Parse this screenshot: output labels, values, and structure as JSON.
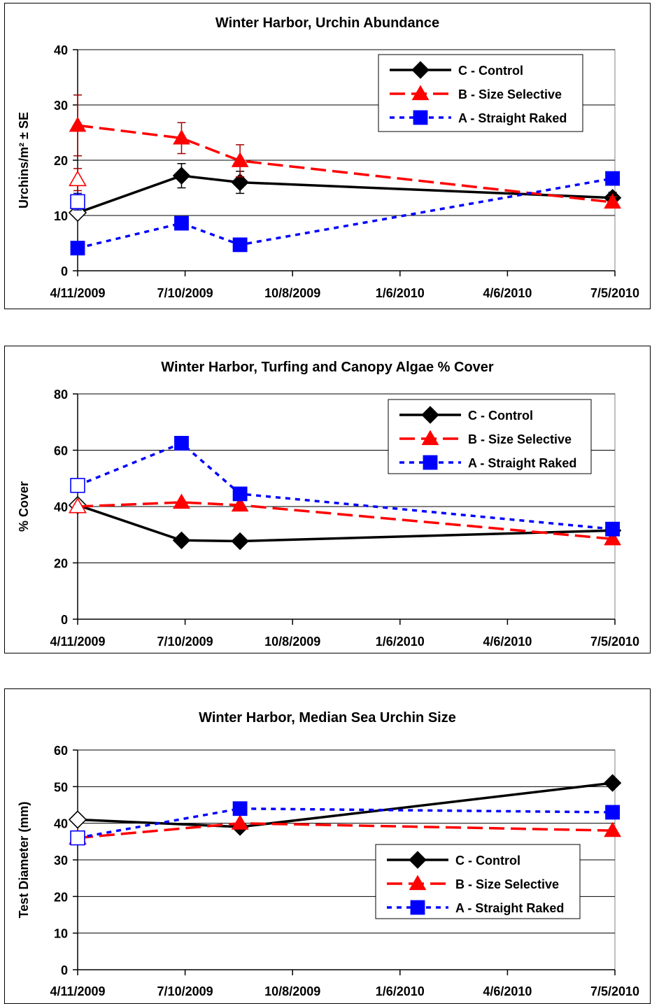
{
  "chart_data": [
    {
      "type": "line",
      "title": "Winter Harbor, Urchin Abundance",
      "ylabel": "Urchins/m² ± SE",
      "xlabel": "",
      "ylim": [
        0,
        40
      ],
      "yticks": [
        0,
        10,
        20,
        30,
        40
      ],
      "xticks": [
        "4/11/2009",
        "7/10/2009",
        "10/8/2009",
        "1/6/2010",
        "4/6/2010",
        "7/5/2010"
      ],
      "grid": true,
      "legend": "top-right",
      "series": [
        {
          "name": "C - Control",
          "color": "#000000",
          "dash": "solid",
          "marker": "diamond",
          "x": [
            "2009-04-11",
            "2009-07-07",
            "2009-08-25",
            "2010-07-03"
          ],
          "y": [
            10.5,
            17.2,
            16.0,
            13.2
          ],
          "err": [
            0.8,
            2.2,
            2.0,
            1.0
          ],
          "first_marker_hollow": true
        },
        {
          "name": "B - Size Selective",
          "color": "#ff0000",
          "dash": "long-dash",
          "marker": "triangle",
          "x": [
            "2009-04-11",
            "2009-07-07",
            "2009-08-25",
            "2010-07-03"
          ],
          "y": [
            26.3,
            24.0,
            19.9,
            12.4
          ],
          "err": [
            5.5,
            2.8,
            2.9,
            1.0
          ],
          "extra_hollow_point": {
            "x": "2009-04-11",
            "y": 16.5,
            "err": 2.0
          }
        },
        {
          "name": "A - Straight Raked",
          "color": "#0000ff",
          "dash": "dotted",
          "marker": "square",
          "x": [
            "2009-04-11",
            "2009-07-07",
            "2009-08-25",
            "2010-07-03"
          ],
          "y": [
            4.1,
            8.6,
            4.7,
            16.7
          ],
          "err": [
            0.6,
            1.0,
            0.6,
            1.0
          ],
          "extra_hollow_point": {
            "x": "2009-04-11",
            "y": 12.5,
            "err": 1.5
          }
        }
      ]
    },
    {
      "type": "line",
      "title": "Winter Harbor, Turfing and Canopy Algae % Cover",
      "ylabel": "% Cover",
      "xlabel": "",
      "ylim": [
        0,
        80
      ],
      "yticks": [
        0,
        20,
        40,
        60,
        80
      ],
      "xticks": [
        "4/11/2009",
        "7/10/2009",
        "10/8/2009",
        "1/6/2010",
        "4/6/2010",
        "7/5/2010"
      ],
      "grid": true,
      "legend": "top-right",
      "series": [
        {
          "name": "C - Control",
          "color": "#000000",
          "dash": "solid",
          "marker": "diamond",
          "x": [
            "2009-04-11",
            "2009-07-07",
            "2009-08-25",
            "2010-07-03"
          ],
          "y": [
            40.5,
            28.0,
            27.7,
            31.5
          ],
          "first_marker_hollow": true
        },
        {
          "name": "B - Size Selective",
          "color": "#ff0000",
          "dash": "long-dash",
          "marker": "triangle",
          "x": [
            "2009-04-11",
            "2009-07-07",
            "2009-08-25",
            "2010-07-03"
          ],
          "y": [
            40.0,
            41.5,
            40.5,
            28.5
          ],
          "first_marker_hollow": true
        },
        {
          "name": "A - Straight Raked",
          "color": "#0000ff",
          "dash": "dotted",
          "marker": "square",
          "x": [
            "2009-04-11",
            "2009-07-07",
            "2009-08-25",
            "2010-07-03"
          ],
          "y": [
            47.5,
            62.5,
            44.5,
            32.0
          ],
          "first_marker_hollow": true
        }
      ]
    },
    {
      "type": "line",
      "title": "Winter Harbor, Median Sea Urchin Size",
      "ylabel": "Test Diameter (mm)",
      "xlabel": "",
      "ylim": [
        0,
        60
      ],
      "yticks": [
        0,
        10,
        20,
        30,
        40,
        50,
        60
      ],
      "xticks": [
        "4/11/2009",
        "7/10/2009",
        "10/8/2009",
        "1/6/2010",
        "4/6/2010",
        "7/5/2010"
      ],
      "grid": true,
      "legend": "center-right",
      "series": [
        {
          "name": "C - Control",
          "color": "#000000",
          "dash": "solid",
          "marker": "diamond",
          "x": [
            "2009-04-11",
            "2009-08-25",
            "2010-07-03"
          ],
          "y": [
            41,
            39,
            51
          ],
          "first_marker_hollow": true
        },
        {
          "name": "B - Size Selective",
          "color": "#ff0000",
          "dash": "long-dash",
          "marker": "triangle",
          "x": [
            "2009-04-11",
            "2009-08-25",
            "2010-07-03"
          ],
          "y": [
            36,
            40,
            38
          ],
          "first_marker_hollow": true
        },
        {
          "name": "A - Straight Raked",
          "color": "#0000ff",
          "dash": "dotted",
          "marker": "square",
          "x": [
            "2009-04-11",
            "2009-08-25",
            "2010-07-03"
          ],
          "y": [
            36,
            44,
            43
          ],
          "first_marker_hollow": true
        }
      ]
    }
  ]
}
